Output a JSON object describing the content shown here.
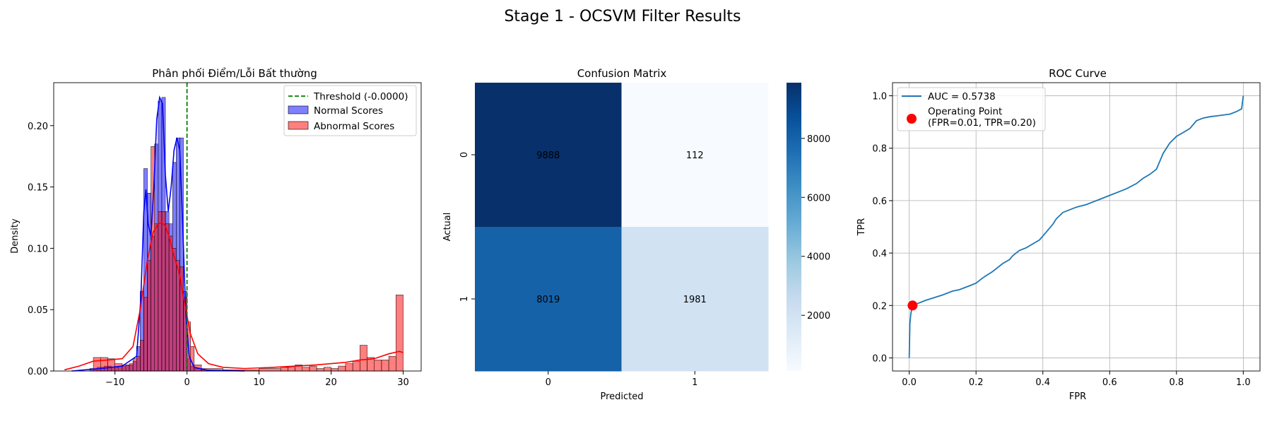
{
  "figure": {
    "title": "Stage 1 - OCSVM Filter Results"
  },
  "chart_data": [
    {
      "type": "histogram",
      "title": "Phân phối Điểm/Lỗi Bất thường",
      "xlabel": "",
      "ylabel": "Density",
      "xlim": [
        -18.5,
        32.5
      ],
      "ylim": [
        0,
        0.235
      ],
      "xticks": [
        -10,
        0,
        10,
        20,
        30
      ],
      "yticks": [
        0.0,
        0.05,
        0.1,
        0.15,
        0.2
      ],
      "legend": {
        "position": "top-right",
        "entries": [
          "Threshold (-0.0000)",
          "Normal Scores",
          "Abnormal Scores"
        ]
      },
      "threshold": {
        "label": "Threshold (-0.0000)",
        "x": 0.0,
        "color": "#008000"
      },
      "series": [
        {
          "name": "Normal Scores",
          "color": "#0000ff",
          "bins": [
            [
              -13.5,
              -12.5,
              0.002
            ],
            [
              -12.5,
              -11.5,
              0.003
            ],
            [
              -11.5,
              -10.5,
              0.004
            ],
            [
              -10.5,
              -9.5,
              0.003
            ],
            [
              -9.5,
              -8.5,
              0.004
            ],
            [
              -8.5,
              -7.5,
              0.005
            ],
            [
              -7.5,
              -7.0,
              0.008
            ],
            [
              -7.0,
              -6.5,
              0.02
            ],
            [
              -6.5,
              -6.0,
              0.065
            ],
            [
              -6.0,
              -5.5,
              0.165
            ],
            [
              -5.5,
              -5.0,
              0.145
            ],
            [
              -5.0,
              -4.5,
              0.11
            ],
            [
              -4.5,
              -4.0,
              0.185
            ],
            [
              -4.0,
              -3.5,
              0.22
            ],
            [
              -3.5,
              -3.0,
              0.223
            ],
            [
              -3.0,
              -2.5,
              0.13
            ],
            [
              -2.5,
              -2.0,
              0.12
            ],
            [
              -2.0,
              -1.5,
              0.17
            ],
            [
              -1.5,
              -1.0,
              0.19
            ],
            [
              -1.0,
              -0.5,
              0.19
            ],
            [
              -0.5,
              0.0,
              0.065
            ],
            [
              0.0,
              0.5,
              0.01
            ],
            [
              0.5,
              1.0,
              0.004
            ],
            [
              1.0,
              2.0,
              0.002
            ],
            [
              2.0,
              3.0,
              0.001
            ]
          ],
          "kde": [
            [
              -16,
              0
            ],
            [
              -12,
              0.002
            ],
            [
              -9,
              0.004
            ],
            [
              -7,
              0.012
            ],
            [
              -6.4,
              0.06
            ],
            [
              -6,
              0.13
            ],
            [
              -5.7,
              0.148
            ],
            [
              -5.4,
              0.12
            ],
            [
              -5.0,
              0.11
            ],
            [
              -4.6,
              0.15
            ],
            [
              -4.2,
              0.205
            ],
            [
              -3.8,
              0.223
            ],
            [
              -3.4,
              0.218
            ],
            [
              -3.0,
              0.16
            ],
            [
              -2.6,
              0.13
            ],
            [
              -2.2,
              0.15
            ],
            [
              -1.8,
              0.18
            ],
            [
              -1.4,
              0.19
            ],
            [
              -1.0,
              0.18
            ],
            [
              -0.6,
              0.12
            ],
            [
              -0.2,
              0.05
            ],
            [
              0.3,
              0.012
            ],
            [
              1,
              0.003
            ],
            [
              3,
              0.0005
            ],
            [
              8,
              0
            ]
          ]
        },
        {
          "name": "Abnormal Scores",
          "color": "#ff0000",
          "bins": [
            [
              -13.0,
              -12.0,
              0.011
            ],
            [
              -12.0,
              -11.0,
              0.011
            ],
            [
              -11.0,
              -10.0,
              0.01
            ],
            [
              -10.0,
              -9.0,
              0.006
            ],
            [
              -9.0,
              -8.0,
              0.005
            ],
            [
              -8.0,
              -7.5,
              0.006
            ],
            [
              -7.5,
              -7.0,
              0.01
            ],
            [
              -7.0,
              -6.5,
              0.012
            ],
            [
              -6.5,
              -6.0,
              0.025
            ],
            [
              -6.0,
              -5.5,
              0.06
            ],
            [
              -5.5,
              -5.0,
              0.09
            ],
            [
              -5.0,
              -4.5,
              0.183
            ],
            [
              -4.5,
              -4.0,
              0.12
            ],
            [
              -4.0,
              -3.5,
              0.13
            ],
            [
              -3.5,
              -3.0,
              0.13
            ],
            [
              -3.0,
              -2.5,
              0.12
            ],
            [
              -2.5,
              -2.0,
              0.11
            ],
            [
              -2.0,
              -1.5,
              0.1
            ],
            [
              -1.5,
              -1.0,
              0.09
            ],
            [
              -1.0,
              -0.5,
              0.085
            ],
            [
              -0.5,
              0.0,
              0.06
            ],
            [
              0.0,
              0.5,
              0.04
            ],
            [
              0.5,
              1.0,
              0.02
            ],
            [
              1.0,
              2.0,
              0.005
            ],
            [
              2.0,
              5.0,
              0.002
            ],
            [
              5.0,
              10.0,
              0.001
            ],
            [
              10.0,
              13.0,
              0.002
            ],
            [
              13.0,
              14.0,
              0.003
            ],
            [
              14.0,
              15.0,
              0.003
            ],
            [
              15.0,
              16.0,
              0.005
            ],
            [
              16.0,
              17.0,
              0.003
            ],
            [
              17.0,
              18.0,
              0.004
            ],
            [
              18.0,
              19.0,
              0.002
            ],
            [
              19.0,
              20.0,
              0.003
            ],
            [
              20.0,
              21.0,
              0.002
            ],
            [
              21.0,
              22.0,
              0.004
            ],
            [
              22.0,
              23.0,
              0.006
            ],
            [
              23.0,
              24.0,
              0.008
            ],
            [
              24.0,
              25.0,
              0.021
            ],
            [
              25.0,
              26.0,
              0.011
            ],
            [
              26.0,
              27.0,
              0.009
            ],
            [
              27.0,
              28.0,
              0.009
            ],
            [
              28.0,
              29.0,
              0.012
            ],
            [
              29.0,
              30.0,
              0.062
            ]
          ],
          "kde": [
            [
              -17,
              0.001
            ],
            [
              -15,
              0.004
            ],
            [
              -13,
              0.008
            ],
            [
              -11,
              0.009
            ],
            [
              -9,
              0.01
            ],
            [
              -7.5,
              0.02
            ],
            [
              -6.5,
              0.05
            ],
            [
              -5.5,
              0.09
            ],
            [
              -4.7,
              0.113
            ],
            [
              -4.0,
              0.12
            ],
            [
              -3.5,
              0.121
            ],
            [
              -3.0,
              0.118
            ],
            [
              -2.5,
              0.11
            ],
            [
              -2.0,
              0.098
            ],
            [
              -1.5,
              0.088
            ],
            [
              -1.0,
              0.078
            ],
            [
              -0.5,
              0.06
            ],
            [
              0,
              0.045
            ],
            [
              0.5,
              0.03
            ],
            [
              1.5,
              0.014
            ],
            [
              3,
              0.006
            ],
            [
              5,
              0.003
            ],
            [
              8,
              0.002
            ],
            [
              12,
              0.003
            ],
            [
              15,
              0.004
            ],
            [
              18,
              0.005
            ],
            [
              20,
              0.006
            ],
            [
              22,
              0.007
            ],
            [
              24,
              0.009
            ],
            [
              26,
              0.01
            ],
            [
              28,
              0.014
            ],
            [
              29.5,
              0.016
            ],
            [
              30,
              0.015
            ]
          ]
        }
      ]
    },
    {
      "type": "heatmap",
      "title": "Confusion Matrix",
      "xlabel": "Predicted",
      "ylabel": "Actual",
      "x_categories": [
        "0",
        "1"
      ],
      "y_categories": [
        "0",
        "1"
      ],
      "values": [
        [
          9888,
          112
        ],
        [
          8019,
          1981
        ]
      ],
      "colorbar": {
        "min": 112,
        "max": 9888,
        "ticks": [
          2000,
          4000,
          6000,
          8000
        ],
        "cmap": "Blues"
      }
    },
    {
      "type": "line",
      "title": "ROC Curve",
      "xlabel": "FPR",
      "ylabel": "TPR",
      "xlim": [
        -0.05,
        1.05
      ],
      "ylim": [
        -0.05,
        1.05
      ],
      "xticks": [
        0.0,
        0.2,
        0.4,
        0.6,
        0.8,
        1.0
      ],
      "yticks": [
        0.0,
        0.2,
        0.4,
        0.6,
        0.8,
        1.0
      ],
      "grid": true,
      "legend": {
        "position": "top-left",
        "entries": [
          "AUC = 0.5738",
          "Operating Point\n(FPR=0.01, TPR=0.20)"
        ]
      },
      "series": [
        {
          "name": "AUC = 0.5738",
          "color": "#1f77b4",
          "x": [
            0,
            0.002,
            0.005,
            0.01,
            0.02,
            0.05,
            0.08,
            0.1,
            0.13,
            0.15,
            0.18,
            0.2,
            0.22,
            0.25,
            0.28,
            0.3,
            0.31,
            0.33,
            0.35,
            0.37,
            0.39,
            0.41,
            0.43,
            0.44,
            0.46,
            0.48,
            0.5,
            0.53,
            0.55,
            0.57,
            0.6,
            0.63,
            0.65,
            0.68,
            0.7,
            0.72,
            0.74,
            0.75,
            0.76,
            0.78,
            0.8,
            0.82,
            0.84,
            0.86,
            0.88,
            0.9,
            0.93,
            0.96,
            0.98,
            0.995,
            1.0
          ],
          "y": [
            0,
            0.13,
            0.17,
            0.2,
            0.205,
            0.22,
            0.232,
            0.24,
            0.255,
            0.26,
            0.275,
            0.285,
            0.305,
            0.33,
            0.36,
            0.375,
            0.39,
            0.41,
            0.42,
            0.435,
            0.45,
            0.48,
            0.51,
            0.53,
            0.555,
            0.565,
            0.575,
            0.585,
            0.595,
            0.605,
            0.62,
            0.635,
            0.645,
            0.665,
            0.685,
            0.7,
            0.72,
            0.75,
            0.78,
            0.82,
            0.845,
            0.86,
            0.875,
            0.905,
            0.915,
            0.92,
            0.925,
            0.93,
            0.94,
            0.95,
            1.0
          ]
        },
        {
          "name": "Operating Point\n(FPR=0.01, TPR=0.20)",
          "type": "scatter",
          "color": "#ff0000",
          "x": [
            0.01
          ],
          "y": [
            0.2
          ]
        }
      ]
    }
  ]
}
